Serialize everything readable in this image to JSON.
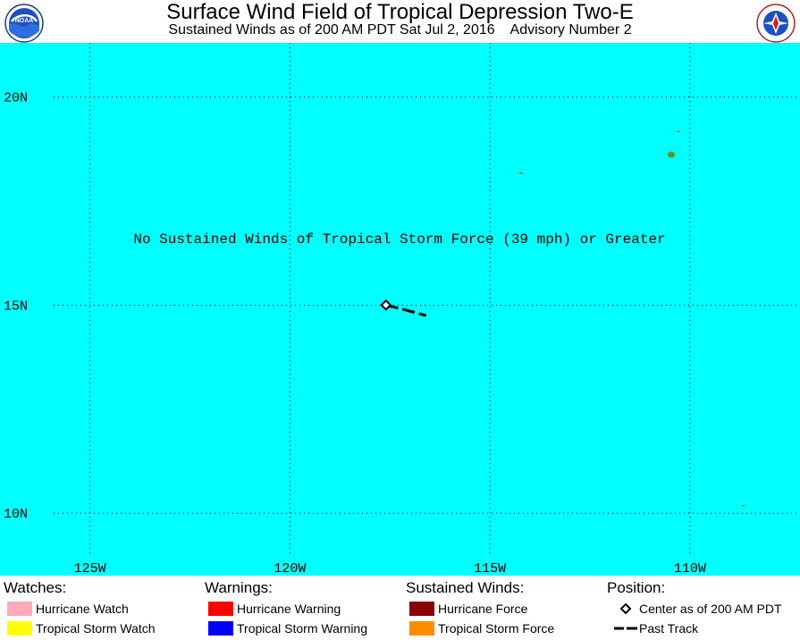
{
  "header": {
    "title": "Surface Wind Field of Tropical Depression Two-E",
    "subtitle": "Sustained Winds as of 200 AM PDT Sat Jul 2, 2016    Advisory Number 2",
    "logo_left": "NOAA",
    "logo_right": "NATIONAL WEATHER SERVICE"
  },
  "map": {
    "ocean_color": "#00ffff",
    "land_color": "#6b8e23",
    "grid_style": "dotted",
    "lon_range": [
      -127.25,
      -107.25
    ],
    "lat_range": [
      8.5,
      21.3
    ],
    "lat_labels": [
      {
        "lat": 20,
        "text": "20N"
      },
      {
        "lat": 15,
        "text": "15N"
      },
      {
        "lat": 10,
        "text": "10N"
      }
    ],
    "lon_labels": [
      {
        "lon": -125,
        "text": "125W"
      },
      {
        "lon": -120,
        "text": "120W"
      },
      {
        "lon": -115,
        "text": "115W"
      },
      {
        "lon": -110,
        "text": "110W"
      }
    ],
    "message": "No Sustained Winds of Tropical Storm Force (39 mph) or Greater",
    "center": {
      "lat": 15.0,
      "lon": -117.6
    },
    "past_track": [
      {
        "lat": 15.0,
        "lon": -117.6
      },
      {
        "lat": 14.88,
        "lon": -117.1
      },
      {
        "lat": 14.75,
        "lon": -116.6
      }
    ]
  },
  "legend": {
    "watches": {
      "heading": "Watches:",
      "items": [
        {
          "label": "Hurricane Watch",
          "color": "#ffaabb"
        },
        {
          "label": "Tropical Storm Watch",
          "color": "#ffff00"
        }
      ]
    },
    "warnings": {
      "heading": "Warnings:",
      "items": [
        {
          "label": "Hurricane Warning",
          "color": "#ff0000"
        },
        {
          "label": "Tropical Storm Warning",
          "color": "#0000ff"
        }
      ]
    },
    "winds": {
      "heading": "Sustained Winds:",
      "items": [
        {
          "label": "Hurricane Force",
          "color": "#8b0000"
        },
        {
          "label": "Tropical Storm Force",
          "color": "#ff8c00"
        }
      ]
    },
    "position": {
      "heading": "Position:",
      "items": [
        {
          "label": "Center as of 200 AM PDT",
          "symbol": "diamond-icon"
        },
        {
          "label": "Past Track",
          "symbol": "dashed-line-icon"
        }
      ]
    }
  }
}
